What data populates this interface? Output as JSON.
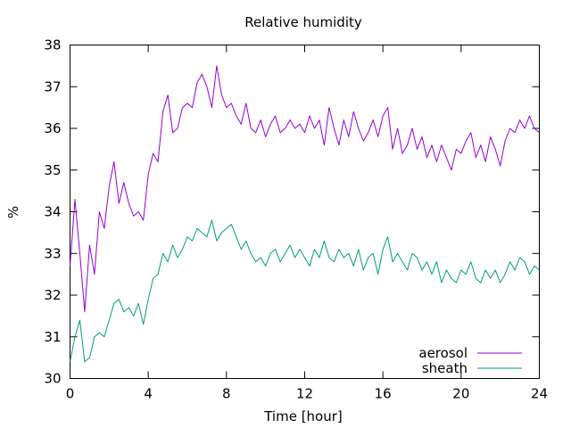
{
  "chart_data": {
    "type": "line",
    "title": "Relative humidity",
    "xlabel": "Time [hour]",
    "ylabel": "%",
    "xlim": [
      0,
      24
    ],
    "ylim": [
      30,
      38
    ],
    "x_ticks": [
      "0",
      "4",
      "8",
      "12",
      "16",
      "20",
      "24"
    ],
    "y_ticks": [
      "30",
      "31",
      "32",
      "33",
      "34",
      "35",
      "36",
      "37",
      "38"
    ],
    "grid": false,
    "legend_position": "bottom-right",
    "series": [
      {
        "name": "aerosol",
        "color": "#9400d3",
        "x": [
          0.0,
          0.25,
          0.5,
          0.75,
          1.0,
          1.25,
          1.5,
          1.75,
          2.0,
          2.25,
          2.5,
          2.75,
          3.0,
          3.25,
          3.5,
          3.75,
          4.0,
          4.25,
          4.5,
          4.75,
          5.0,
          5.25,
          5.5,
          5.75,
          6.0,
          6.25,
          6.5,
          6.75,
          7.0,
          7.25,
          7.5,
          7.75,
          8.0,
          8.25,
          8.5,
          8.75,
          9.0,
          9.25,
          9.5,
          9.75,
          10.0,
          10.25,
          10.5,
          10.75,
          11.0,
          11.25,
          11.5,
          11.75,
          12.0,
          12.25,
          12.5,
          12.75,
          13.0,
          13.25,
          13.5,
          13.75,
          14.0,
          14.25,
          14.5,
          14.75,
          15.0,
          15.25,
          15.5,
          15.75,
          16.0,
          16.25,
          16.5,
          16.75,
          17.0,
          17.25,
          17.5,
          17.75,
          18.0,
          18.25,
          18.5,
          18.75,
          19.0,
          19.25,
          19.5,
          19.75,
          20.0,
          20.25,
          20.5,
          20.75,
          21.0,
          21.25,
          21.5,
          21.75,
          22.0,
          22.25,
          22.5,
          22.75,
          23.0,
          23.25,
          23.5,
          23.75,
          24.0
        ],
        "values": [
          32.7,
          34.3,
          33.0,
          31.6,
          33.2,
          32.5,
          34.0,
          33.6,
          34.6,
          35.2,
          34.2,
          34.7,
          34.2,
          33.9,
          34.0,
          33.8,
          34.9,
          35.4,
          35.2,
          36.4,
          36.8,
          35.9,
          36.0,
          36.5,
          36.6,
          36.5,
          37.1,
          37.3,
          37.0,
          36.5,
          37.5,
          36.8,
          36.5,
          36.6,
          36.3,
          36.1,
          36.6,
          36.0,
          35.9,
          36.2,
          35.8,
          36.1,
          36.3,
          35.9,
          36.0,
          36.2,
          36.0,
          36.1,
          35.9,
          36.3,
          36.0,
          36.2,
          35.6,
          36.5,
          36.0,
          35.6,
          36.2,
          35.8,
          36.4,
          36.0,
          35.7,
          35.9,
          36.2,
          35.8,
          36.3,
          36.5,
          35.5,
          36.0,
          35.4,
          35.6,
          36.0,
          35.5,
          35.8,
          35.3,
          35.6,
          35.2,
          35.6,
          35.3,
          35.0,
          35.5,
          35.4,
          35.7,
          35.9,
          35.3,
          35.6,
          35.2,
          35.8,
          35.5,
          35.1,
          35.7,
          36.0,
          35.9,
          36.2,
          36.0,
          36.3,
          36.0,
          35.9
        ]
      },
      {
        "name": "sheath",
        "color": "#009e73",
        "x": [
          0.0,
          0.25,
          0.5,
          0.75,
          1.0,
          1.25,
          1.5,
          1.75,
          2.0,
          2.25,
          2.5,
          2.75,
          3.0,
          3.25,
          3.5,
          3.75,
          4.0,
          4.25,
          4.5,
          4.75,
          5.0,
          5.25,
          5.5,
          5.75,
          6.0,
          6.25,
          6.5,
          6.75,
          7.0,
          7.25,
          7.5,
          7.75,
          8.0,
          8.25,
          8.5,
          8.75,
          9.0,
          9.25,
          9.5,
          9.75,
          10.0,
          10.25,
          10.5,
          10.75,
          11.0,
          11.25,
          11.5,
          11.75,
          12.0,
          12.25,
          12.5,
          12.75,
          13.0,
          13.25,
          13.5,
          13.75,
          14.0,
          14.25,
          14.5,
          14.75,
          15.0,
          15.25,
          15.5,
          15.75,
          16.0,
          16.25,
          16.5,
          16.75,
          17.0,
          17.25,
          17.5,
          17.75,
          18.0,
          18.25,
          18.5,
          18.75,
          19.0,
          19.25,
          19.5,
          19.75,
          20.0,
          20.25,
          20.5,
          20.75,
          21.0,
          21.25,
          21.5,
          21.75,
          22.0,
          22.25,
          22.5,
          22.75,
          23.0,
          23.25,
          23.5,
          23.75,
          24.0
        ],
        "values": [
          30.4,
          31.0,
          31.4,
          30.4,
          30.5,
          31.0,
          31.1,
          31.0,
          31.4,
          31.8,
          31.9,
          31.6,
          31.7,
          31.5,
          31.8,
          31.3,
          31.9,
          32.4,
          32.5,
          33.0,
          32.8,
          33.2,
          32.9,
          33.1,
          33.4,
          33.3,
          33.6,
          33.5,
          33.4,
          33.8,
          33.3,
          33.5,
          33.6,
          33.7,
          33.4,
          33.1,
          33.3,
          33.0,
          32.8,
          32.9,
          32.7,
          33.0,
          33.1,
          32.8,
          33.0,
          33.2,
          32.9,
          33.1,
          32.9,
          32.7,
          33.1,
          32.9,
          33.3,
          32.9,
          32.8,
          33.1,
          32.9,
          33.0,
          32.7,
          33.1,
          32.6,
          32.9,
          33.0,
          32.5,
          33.1,
          33.4,
          32.8,
          33.0,
          32.8,
          32.6,
          33.0,
          32.9,
          32.6,
          32.8,
          32.5,
          32.8,
          32.3,
          32.6,
          32.4,
          32.3,
          32.6,
          32.5,
          32.8,
          32.4,
          32.3,
          32.6,
          32.4,
          32.6,
          32.3,
          32.5,
          32.8,
          32.6,
          32.9,
          32.8,
          32.5,
          32.7,
          32.6
        ]
      }
    ]
  }
}
